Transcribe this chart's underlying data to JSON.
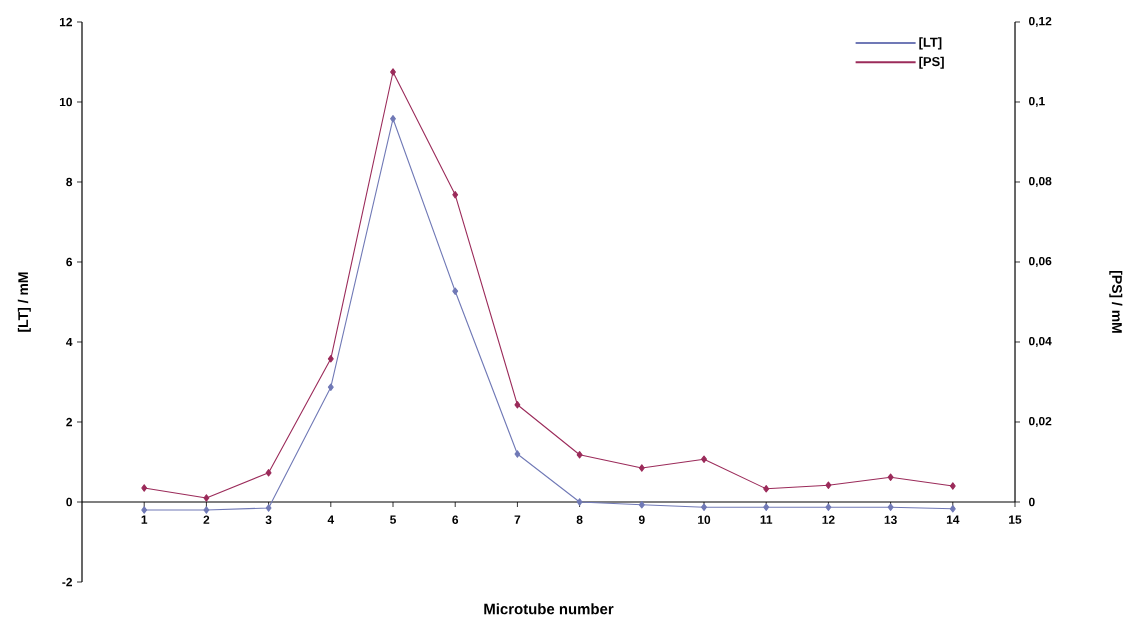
{
  "chart_data": {
    "type": "line",
    "xlabel": "Microtube number",
    "ylabel": "[LT] / mM",
    "y2label": "[PS] / mM",
    "x": [
      1,
      2,
      3,
      4,
      5,
      6,
      7,
      8,
      9,
      10,
      11,
      12,
      13,
      14
    ],
    "series": [
      {
        "name": "[LT]",
        "color": "#7079b6",
        "values": [
          -0.2,
          -0.2,
          -0.15,
          2.87,
          9.58,
          5.27,
          1.2,
          0,
          -0.07,
          -0.13,
          -0.13,
          -0.13,
          -0.13,
          -0.17
        ]
      },
      {
        "name": "[PS]",
        "color": "#9b2b5a",
        "axis": "y2",
        "values": [
          0.0035,
          0.001,
          0.0073,
          0.0358,
          0.1075,
          0.0768,
          0.0243,
          0.0118,
          0.0085,
          0.0107,
          0.0033,
          0.0042,
          0.0062,
          0.004
        ]
      }
    ],
    "xlim": [
      0,
      15
    ],
    "xticks": [
      1,
      2,
      3,
      4,
      5,
      6,
      7,
      8,
      9,
      10,
      11,
      12,
      13,
      14,
      15
    ],
    "ylim": [
      -2,
      12
    ],
    "yticks": [
      -2,
      0,
      2,
      4,
      6,
      8,
      10,
      12
    ],
    "y2lim": [
      -0.02,
      0.12
    ],
    "y2ticks": [
      {
        "value": 0,
        "label": "0"
      },
      {
        "value": 0.02,
        "label": "0,02"
      },
      {
        "value": 0.04,
        "label": "0,04"
      },
      {
        "value": 0.06,
        "label": "0,06"
      },
      {
        "value": 0.08,
        "label": "0,08"
      },
      {
        "value": 0.1,
        "label": "0,1"
      },
      {
        "value": 0.12,
        "label": "0,12"
      }
    ],
    "marker": "diamond",
    "legend": "top right"
  }
}
